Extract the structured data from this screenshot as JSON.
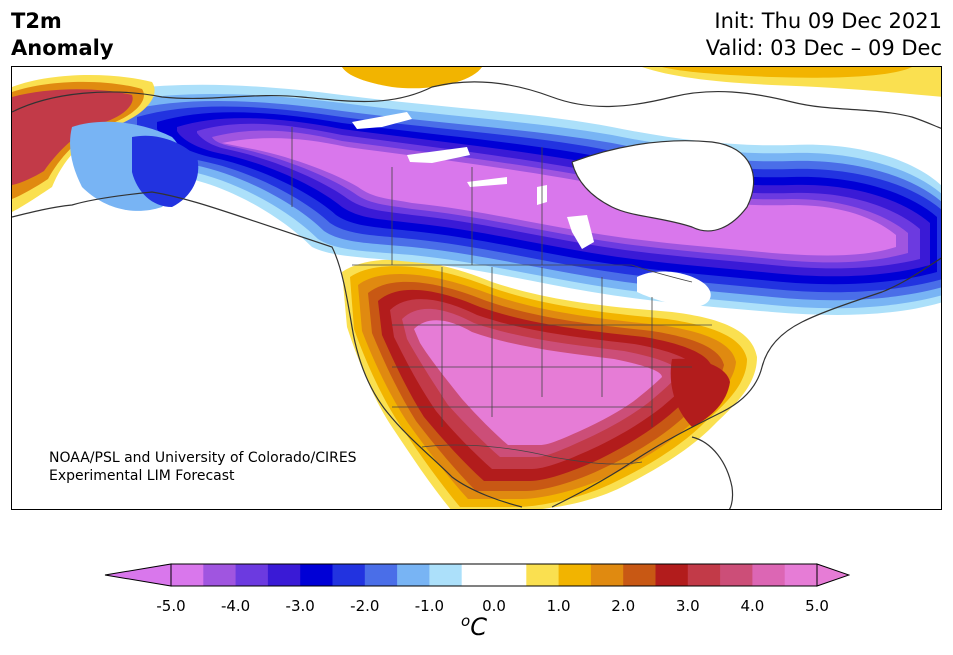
{
  "header": {
    "title_line1": "T2m",
    "title_line2": "Anomaly",
    "init_text": "Init: Thu 09 Dec 2021",
    "valid_text": "Valid: 03 Dec – 09 Dec"
  },
  "credit": {
    "line1": "NOAA/PSL and University of Colorado/CIRES",
    "line2": "Experimental LIM Forecast"
  },
  "colorbar": {
    "colors": [
      "#d977ec",
      "#a055e0",
      "#6c3ae0",
      "#3a1ad6",
      "#0000d6",
      "#2233e0",
      "#4a6ee8",
      "#78b4f4",
      "#ace0fa",
      "#ffffff",
      "#ffffff",
      "#fae050",
      "#f2b400",
      "#e08a10",
      "#c85814",
      "#b21c1c",
      "#c23a48",
      "#cc4e78",
      "#dc66b4",
      "#e67cd6"
    ],
    "tick_labels": [
      "-5.0",
      "-4.0",
      "-3.0",
      "-2.0",
      "-1.0",
      "0.0",
      "1.0",
      "2.0",
      "3.0",
      "4.0",
      "5.0"
    ],
    "unit_sup": "o",
    "unit_main": "C"
  }
}
